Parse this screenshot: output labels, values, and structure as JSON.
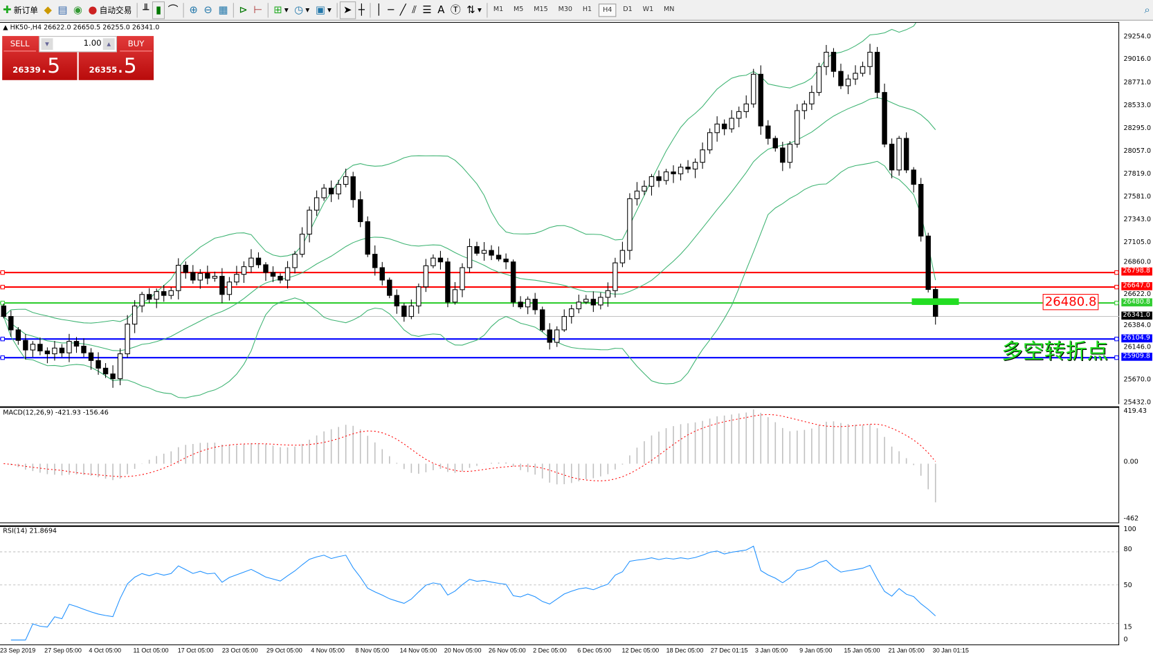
{
  "toolbar": {
    "new_order": "新订单",
    "auto_trading": "自动交易",
    "timeframes": [
      "M1",
      "M5",
      "M15",
      "M30",
      "H1",
      "H4",
      "D1",
      "W1",
      "MN"
    ],
    "active_timeframe": "H4"
  },
  "chart": {
    "header": "HK50-,H4  26622.0 26650.5 26255.0 26341.0",
    "sell_label": "SELL",
    "buy_label": "BUY",
    "lot": "1.00",
    "sell_price_main": "26339",
    "sell_price_big": ".5",
    "buy_price_main": "26355",
    "buy_price_big": ".5",
    "annotation_price": "26480.8",
    "annotation_text": "多空转折点"
  },
  "chart_data": {
    "type": "candlestick",
    "symbol": "HK50-",
    "timeframe": "H4",
    "last_candle": {
      "open": 26622.0,
      "high": 26650.5,
      "low": 26255.0,
      "close": 26341.0
    },
    "closes": [
      26340,
      26200,
      26090,
      25990,
      26050,
      25980,
      25950,
      26010,
      25960,
      26080,
      26030,
      25960,
      25880,
      25800,
      25740,
      25690,
      25950,
      26260,
      26450,
      26570,
      26520,
      26600,
      26560,
      26610,
      26875,
      26800,
      26720,
      26790,
      26740,
      26760,
      26570,
      26700,
      26780,
      26860,
      26950,
      26880,
      26800,
      26760,
      26720,
      26850,
      26990,
      27200,
      27450,
      27580,
      27680,
      27620,
      27720,
      27800,
      27560,
      27330,
      26990,
      26850,
      26720,
      26560,
      26450,
      26340,
      26450,
      26650,
      26870,
      26950,
      26910,
      26490,
      26620,
      26850,
      27070,
      27000,
      27030,
      26980,
      26940,
      26910,
      26490,
      26440,
      26520,
      26410,
      26200,
      26070,
      26200,
      26340,
      26420,
      26490,
      26520,
      26460,
      26540,
      26610,
      26900,
      27030,
      27570,
      27650,
      27700,
      27800,
      27760,
      27850,
      27830,
      27900,
      27880,
      27950,
      28080,
      28260,
      28350,
      28300,
      28410,
      28480,
      28560,
      28870,
      28330,
      28200,
      28100,
      27950,
      28140,
      28490,
      28560,
      28680,
      28950,
      29100,
      28900,
      28750,
      28820,
      28880,
      28950,
      29100,
      28680,
      28140,
      27870,
      28200,
      27870,
      27720,
      27180,
      26622,
      26341
    ],
    "price_axis": [
      "29254.0",
      "29016.0",
      "28771.0",
      "28533.0",
      "28295.0",
      "28057.0",
      "27819.0",
      "27581.0",
      "27343.0",
      "27105.0",
      "26860.0",
      "26622.0",
      "26384.0",
      "26146.0",
      "25670.0",
      "25432.0"
    ],
    "price_range": [
      25432,
      29254
    ],
    "levels": [
      {
        "value": "26798.8",
        "color": "#ff0000"
      },
      {
        "value": "26647.0",
        "color": "#ff0000"
      },
      {
        "value": "26480.8",
        "color": "#32cd32"
      },
      {
        "value": "26341.0",
        "color": "#000000"
      },
      {
        "value": "26104.9",
        "color": "#0000ff"
      },
      {
        "value": "25909.8",
        "color": "#0000ff"
      }
    ],
    "indicator_bands": "Bollinger Bands",
    "band_color": "#3cb371",
    "macd": {
      "label": "MACD(12,26,9) -421.93 -156.46",
      "axis": [
        "419.43",
        "0.00",
        "-462"
      ],
      "range": [
        -462,
        419.43
      ],
      "hist_color": "#c0c0c0",
      "signal_color": "#ff0000"
    },
    "rsi": {
      "label": "RSI(14) 21.8694",
      "axis": [
        "100",
        "80",
        "50",
        "15",
        "0"
      ],
      "levels": [
        80,
        50,
        15
      ],
      "line_color": "#1e90ff"
    },
    "time_axis": [
      "23 Sep 2019",
      "27 Sep 05:00",
      "4 Oct 05:00",
      "11 Oct 05:00",
      "17 Oct 05:00",
      "23 Oct 05:00",
      "29 Oct 05:00",
      "4 Nov 05:00",
      "8 Nov 05:00",
      "14 Nov 05:00",
      "20 Nov 05:00",
      "26 Nov 05:00",
      "2 Dec 05:00",
      "6 Dec 05:00",
      "12 Dec 05:00",
      "18 Dec 05:00",
      "27 Dec 01:15",
      "3 Jan 05:00",
      "9 Jan 05:00",
      "15 Jan 05:00",
      "21 Jan 05:00",
      "30 Jan 01:15"
    ]
  }
}
